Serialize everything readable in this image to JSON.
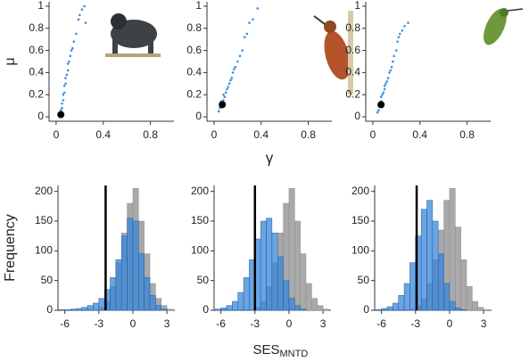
{
  "chart_data": [
    {
      "type": "scatter",
      "ylabel": "μ",
      "color": "#3a8fe0",
      "marker_color": "#000000",
      "x": [
        0.03,
        0.04,
        0.04,
        0.05,
        0.05,
        0.06,
        0.06,
        0.07,
        0.07,
        0.08,
        0.08,
        0.09,
        0.1,
        0.1,
        0.11,
        0.12,
        0.13,
        0.14,
        0.15,
        0.17,
        0.19,
        0.2,
        0.22,
        0.24,
        0.25
      ],
      "values": [
        0.01,
        0.03,
        0.06,
        0.08,
        0.12,
        0.15,
        0.2,
        0.22,
        0.28,
        0.3,
        0.35,
        0.38,
        0.42,
        0.48,
        0.5,
        0.55,
        0.6,
        0.62,
        0.68,
        0.75,
        0.88,
        0.92,
        0.97,
        1.0,
        0.85
      ],
      "marker_point": {
        "x": 0.04,
        "y": 0.02
      },
      "xlim": [
        -0.06,
        1.0
      ],
      "ylim": [
        -0.04,
        1.04
      ],
      "xticks": [
        0,
        0.4,
        0.8
      ],
      "yticks": [
        0,
        0.2,
        0.4,
        0.6,
        0.8,
        1
      ]
    },
    {
      "type": "scatter",
      "xlabel": "γ",
      "color": "#3a8fe0",
      "marker_color": "#000000",
      "x": [
        0.04,
        0.05,
        0.06,
        0.06,
        0.07,
        0.08,
        0.08,
        0.09,
        0.1,
        0.11,
        0.12,
        0.13,
        0.14,
        0.15,
        0.16,
        0.17,
        0.18,
        0.2,
        0.22,
        0.24,
        0.26,
        0.28,
        0.3,
        0.33,
        0.37
      ],
      "values": [
        0.05,
        0.08,
        0.1,
        0.14,
        0.12,
        0.15,
        0.2,
        0.18,
        0.22,
        0.25,
        0.27,
        0.3,
        0.33,
        0.35,
        0.4,
        0.43,
        0.45,
        0.5,
        0.55,
        0.6,
        0.72,
        0.75,
        0.85,
        0.88,
        0.98
      ],
      "marker_point": {
        "x": 0.07,
        "y": 0.11
      },
      "xlim": [
        -0.06,
        1.0
      ],
      "ylim": [
        -0.04,
        1.04
      ],
      "xticks": [
        0,
        0.4,
        0.8
      ],
      "yticks": [
        0,
        0.2,
        0.4,
        0.6,
        0.8,
        1
      ]
    },
    {
      "type": "scatter",
      "color": "#3a8fe0",
      "marker_color": "#000000",
      "x": [
        0.04,
        0.05,
        0.05,
        0.06,
        0.07,
        0.07,
        0.08,
        0.09,
        0.1,
        0.1,
        0.11,
        0.12,
        0.13,
        0.14,
        0.15,
        0.16,
        0.17,
        0.18,
        0.2,
        0.21,
        0.22,
        0.23,
        0.25,
        0.27,
        0.3
      ],
      "values": [
        0.04,
        0.06,
        0.1,
        0.12,
        0.14,
        0.18,
        0.2,
        0.22,
        0.25,
        0.28,
        0.3,
        0.32,
        0.35,
        0.4,
        0.42,
        0.45,
        0.5,
        0.55,
        0.6,
        0.68,
        0.72,
        0.75,
        0.78,
        0.82,
        0.85
      ],
      "marker_point": {
        "x": 0.07,
        "y": 0.11
      },
      "xlim": [
        -0.06,
        1.0
      ],
      "ylim": [
        -0.04,
        1.04
      ],
      "xticks": [
        0,
        0.4,
        0.8
      ],
      "yticks": [
        0,
        0.2,
        0.4,
        0.6,
        0.8,
        1
      ]
    },
    {
      "type": "histogram",
      "ylabel": "Frequency",
      "bins": [
        -6.5,
        -6,
        -5.5,
        -5,
        -4.5,
        -4,
        -3.5,
        -3,
        -2.5,
        -2,
        -1.5,
        -1,
        -0.5,
        0,
        0.5,
        1,
        1.5,
        2,
        2.5,
        3,
        3.5
      ],
      "series": [
        {
          "color": "#a9a9a9",
          "values": [
            0,
            0,
            0,
            0,
            0,
            0,
            0,
            5,
            15,
            40,
            80,
            130,
            180,
            205,
            150,
            95,
            45,
            20,
            8,
            2
          ]
        },
        {
          "color": "#3a86d8",
          "values": [
            1,
            1,
            2,
            3,
            5,
            8,
            12,
            20,
            35,
            55,
            85,
            125,
            155,
            150,
            95,
            55,
            25,
            8,
            2,
            0
          ]
        }
      ],
      "reference_line": -2.4,
      "xlim": [
        -6.6,
        3.7
      ],
      "ylim": [
        0,
        210
      ],
      "xticks": [
        -6,
        -3,
        0,
        3
      ],
      "yticks": [
        0,
        50,
        100,
        150,
        200
      ]
    },
    {
      "type": "histogram",
      "xlabel": "SES",
      "xlabel_sub": "MNTD",
      "bins": [
        -6.5,
        -6,
        -5.5,
        -5,
        -4.5,
        -4,
        -3.5,
        -3,
        -2.5,
        -2,
        -1.5,
        -1,
        -0.5,
        0,
        0.5,
        1,
        1.5,
        2,
        2.5,
        3,
        3.5
      ],
      "series": [
        {
          "color": "#a9a9a9",
          "values": [
            0,
            0,
            0,
            0,
            0,
            0,
            0,
            5,
            15,
            40,
            80,
            130,
            180,
            205,
            150,
            95,
            45,
            20,
            8,
            2
          ]
        },
        {
          "color": "#3a86d8",
          "values": [
            2,
            4,
            8,
            15,
            30,
            55,
            85,
            120,
            150,
            155,
            130,
            90,
            50,
            20,
            8,
            2,
            0,
            0,
            0,
            0
          ]
        }
      ],
      "reference_line": -3.0,
      "xlim": [
        -6.6,
        3.7
      ],
      "ylim": [
        0,
        210
      ],
      "xticks": [
        -6,
        -3,
        0,
        3
      ],
      "yticks": [
        0,
        50,
        100,
        150,
        200
      ]
    },
    {
      "type": "histogram",
      "bins": [
        -6.5,
        -6,
        -5.5,
        -5,
        -4.5,
        -4,
        -3.5,
        -3,
        -2.5,
        -2,
        -1.5,
        -1,
        -0.5,
        0,
        0.5,
        1,
        1.5,
        2,
        2.5,
        3,
        3.5
      ],
      "series": [
        {
          "color": "#a9a9a9",
          "values": [
            0,
            0,
            0,
            0,
            0,
            0,
            2,
            8,
            20,
            45,
            85,
            135,
            185,
            205,
            140,
            85,
            40,
            15,
            5,
            1
          ]
        },
        {
          "color": "#3a86d8",
          "values": [
            1,
            3,
            6,
            12,
            25,
            45,
            80,
            125,
            170,
            185,
            150,
            95,
            45,
            15,
            4,
            1,
            0,
            0,
            0,
            0
          ]
        }
      ],
      "reference_line": -2.9,
      "xlim": [
        -6.6,
        3.7
      ],
      "ylim": [
        0,
        210
      ],
      "xticks": [
        -6,
        -3,
        0,
        3
      ],
      "yticks": [
        0,
        50,
        100,
        150,
        200
      ]
    }
  ]
}
